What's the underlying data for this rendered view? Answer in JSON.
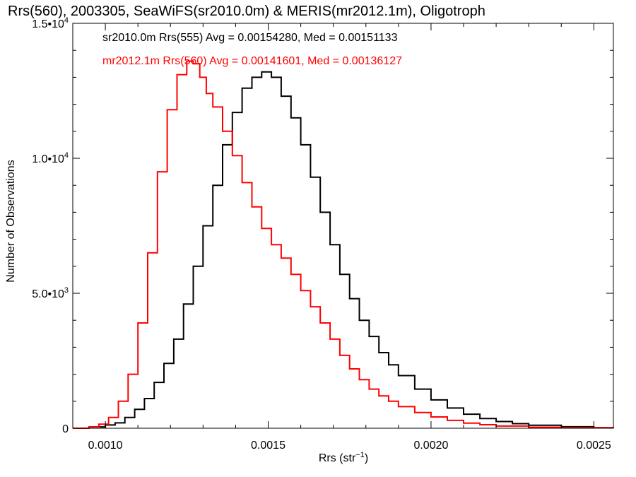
{
  "chart_data": {
    "type": "line",
    "title": "Rrs(560), 2003305, SeaWiFS(sr2010.0m) & MERIS(mr2012.1m), Oligotroph",
    "xlabel_main": "Rrs (str",
    "xlabel_sup": "−1",
    "xlabel_close": ")",
    "ylabel": "Number of Observations",
    "xlim": [
      0.0009,
      0.00256
    ],
    "ylim": [
      0,
      15000
    ],
    "grid": false,
    "x_ticks": [
      {
        "value": 0.001,
        "label": "0.0010"
      },
      {
        "value": 0.0015,
        "label": "0.0015"
      },
      {
        "value": 0.002,
        "label": "0.0020"
      },
      {
        "value": 0.0025,
        "label": "0.0025"
      }
    ],
    "y_ticks": [
      {
        "value": 0,
        "mant": "0",
        "exp": ""
      },
      {
        "value": 5000,
        "mant": "5.0•10",
        "exp": "3"
      },
      {
        "value": 10000,
        "mant": "1.0•10",
        "exp": "4"
      },
      {
        "value": 15000,
        "mant": "1.5•10",
        "exp": "4"
      }
    ],
    "annotations": [
      {
        "text": "sr2010.0m Rrs(555) Avg = 0.00154280, Med = 0.00151133",
        "color": "#000000"
      },
      {
        "text": "mr2012.1m Rrs(560) Avg = 0.00141601, Med = 0.00136127",
        "color": "#ff0000"
      }
    ],
    "series": [
      {
        "color": "#000000",
        "x": [
          0.0009,
          0.00095,
          0.001,
          0.00103,
          0.00106,
          0.00109,
          0.00112,
          0.00115,
          0.00118,
          0.00121,
          0.00124,
          0.00127,
          0.0013,
          0.00133,
          0.00136,
          0.00139,
          0.00142,
          0.00145,
          0.00148,
          0.00151,
          0.00154,
          0.00157,
          0.0016,
          0.00163,
          0.00166,
          0.00169,
          0.00172,
          0.00175,
          0.00178,
          0.00181,
          0.00184,
          0.00187,
          0.0019,
          0.00195,
          0.002,
          0.00205,
          0.0021,
          0.00215,
          0.0022,
          0.00225,
          0.0023,
          0.0024,
          0.0025,
          0.00256
        ],
        "y": [
          0,
          50,
          120,
          200,
          400,
          700,
          1100,
          1700,
          2400,
          3300,
          4600,
          6000,
          7500,
          9000,
          10500,
          11700,
          12600,
          13000,
          13200,
          13000,
          12300,
          11500,
          10500,
          9300,
          8000,
          6800,
          5700,
          4800,
          4000,
          3400,
          2800,
          2350,
          1950,
          1450,
          1050,
          750,
          520,
          360,
          250,
          170,
          110,
          55,
          20,
          10
        ]
      },
      {
        "color": "#ff0000",
        "x": [
          0.0009,
          0.00095,
          0.00098,
          0.00101,
          0.00104,
          0.00107,
          0.0011,
          0.00113,
          0.00116,
          0.00119,
          0.00122,
          0.00125,
          0.00127,
          0.00129,
          0.00131,
          0.00133,
          0.00136,
          0.00139,
          0.00142,
          0.00145,
          0.00148,
          0.00151,
          0.00154,
          0.00157,
          0.0016,
          0.00163,
          0.00166,
          0.00169,
          0.00172,
          0.00175,
          0.00178,
          0.00181,
          0.00184,
          0.00187,
          0.0019,
          0.00195,
          0.002,
          0.00205,
          0.0021,
          0.00215,
          0.0022,
          0.0023,
          0.0024,
          0.00256
        ],
        "y": [
          0,
          50,
          150,
          400,
          1000,
          2000,
          3900,
          6500,
          9500,
          11800,
          13100,
          13600,
          13500,
          13000,
          12400,
          11900,
          11000,
          10100,
          9100,
          8200,
          7400,
          6800,
          6300,
          5700,
          5100,
          4500,
          3900,
          3300,
          2700,
          2200,
          1800,
          1450,
          1200,
          1000,
          800,
          580,
          420,
          290,
          190,
          130,
          80,
          40,
          20,
          5
        ]
      }
    ]
  }
}
